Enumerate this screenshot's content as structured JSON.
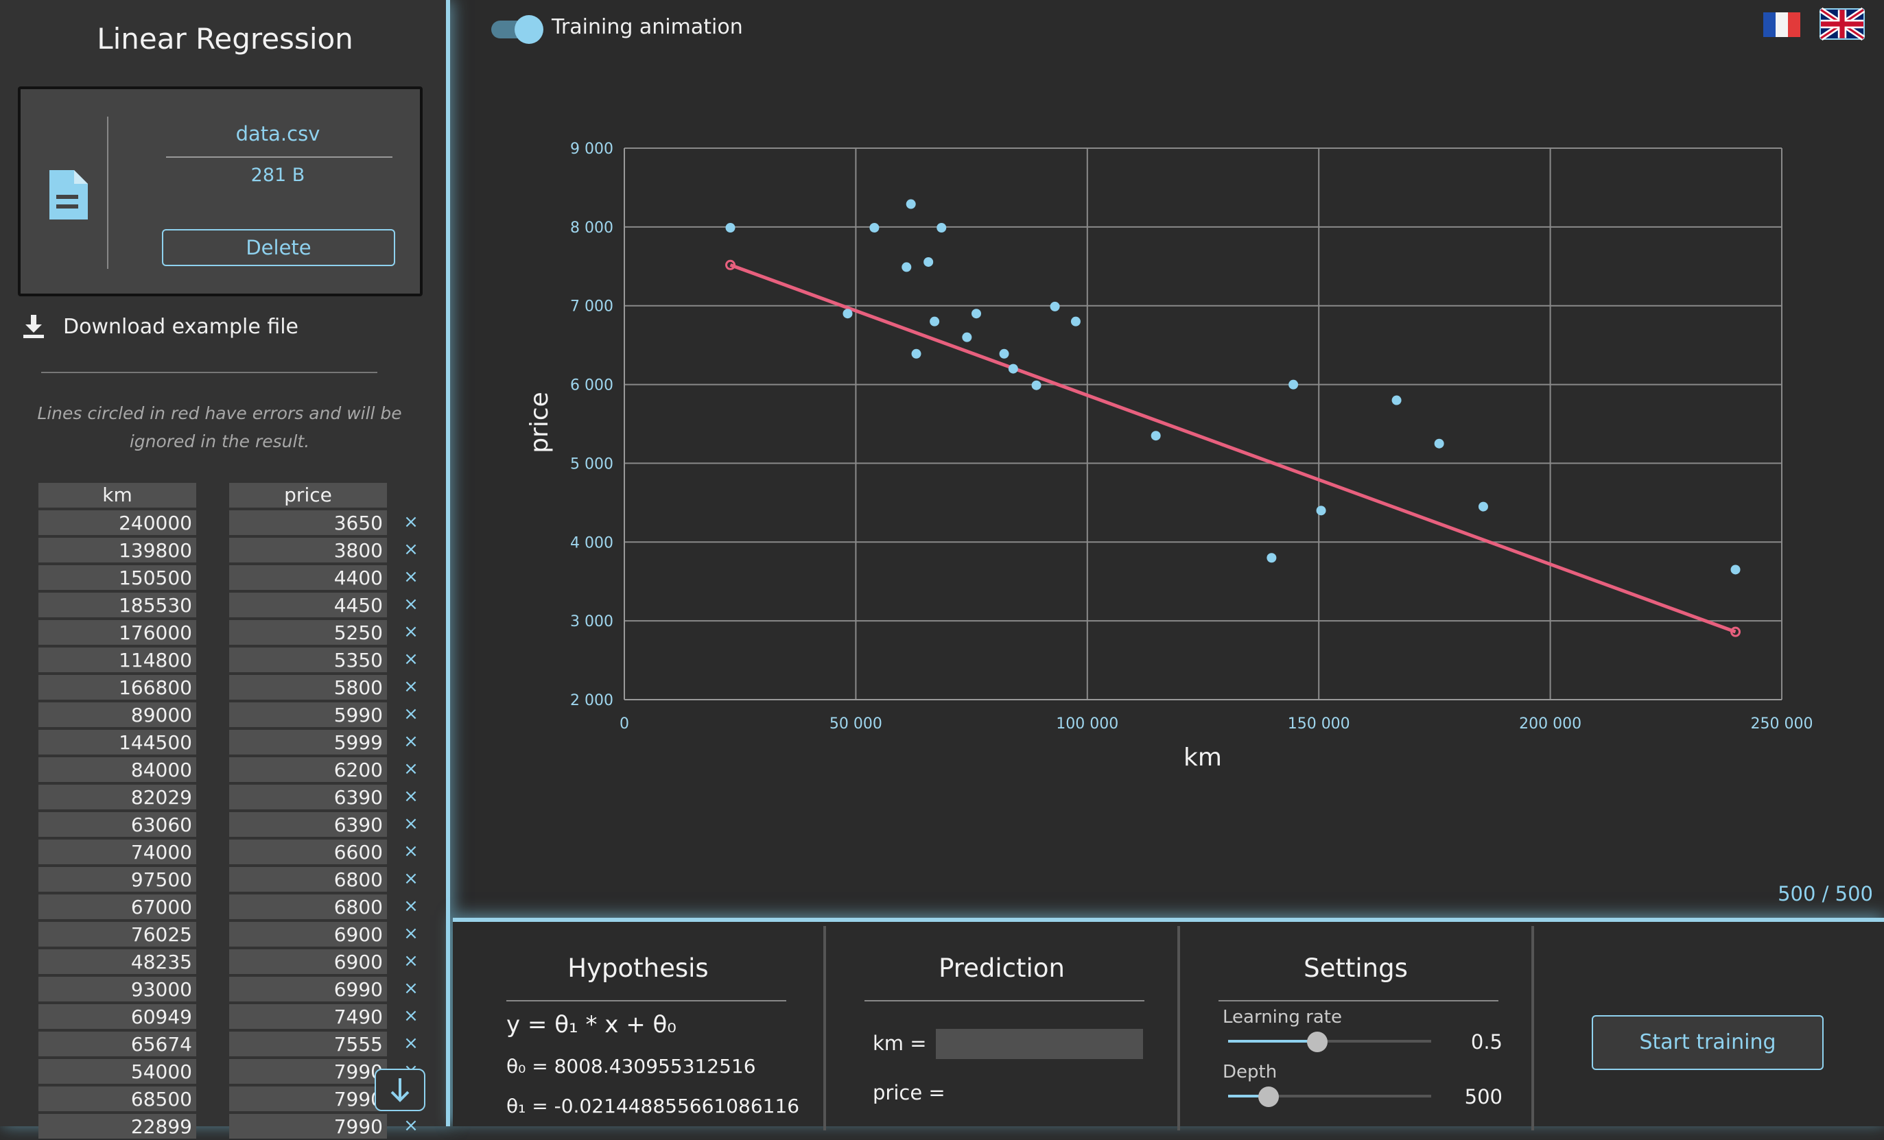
{
  "sidebar": {
    "title": "Linear Regression",
    "file": {
      "name": "data.csv",
      "size": "281 B",
      "delete_label": "Delete"
    },
    "download_label": "Download example file",
    "note": "Lines circled in red have errors and will be ignored in the result.",
    "table": {
      "headers": [
        "km",
        "price"
      ],
      "rows": [
        [
          "240000",
          "3650"
        ],
        [
          "139800",
          "3800"
        ],
        [
          "150500",
          "4400"
        ],
        [
          "185530",
          "4450"
        ],
        [
          "176000",
          "5250"
        ],
        [
          "114800",
          "5350"
        ],
        [
          "166800",
          "5800"
        ],
        [
          "89000",
          "5990"
        ],
        [
          "144500",
          "5999"
        ],
        [
          "84000",
          "6200"
        ],
        [
          "82029",
          "6390"
        ],
        [
          "63060",
          "6390"
        ],
        [
          "74000",
          "6600"
        ],
        [
          "97500",
          "6800"
        ],
        [
          "67000",
          "6800"
        ],
        [
          "76025",
          "6900"
        ],
        [
          "48235",
          "6900"
        ],
        [
          "93000",
          "6990"
        ],
        [
          "60949",
          "7490"
        ],
        [
          "65674",
          "7555"
        ],
        [
          "54000",
          "7990"
        ],
        [
          "68500",
          "7990"
        ],
        [
          "22899",
          "7990"
        ]
      ],
      "remove_symbol": "×"
    }
  },
  "top": {
    "animation_label": "Training animation",
    "animation_on": true,
    "progress": "500 / 500"
  },
  "colors": {
    "accent": "#8fd2ef",
    "regression_line": "#e8607e",
    "background": "#2b2b2b"
  },
  "chart_data": {
    "type": "scatter",
    "xlabel": "km",
    "ylabel": "price",
    "xlim": [
      0,
      250000
    ],
    "ylim": [
      2000,
      9000
    ],
    "x_ticks": [
      0,
      50000,
      100000,
      150000,
      200000,
      250000
    ],
    "x_tick_labels": [
      "0",
      "50 000",
      "100 000",
      "150 000",
      "200 000",
      "250 000"
    ],
    "y_ticks": [
      2000,
      3000,
      4000,
      5000,
      6000,
      7000,
      8000,
      9000
    ],
    "y_tick_labels": [
      "2 000",
      "3 000",
      "4 000",
      "5 000",
      "6 000",
      "7 000",
      "8 000",
      "9 000"
    ],
    "grid": true,
    "points": [
      [
        240000,
        3650
      ],
      [
        139800,
        3800
      ],
      [
        150500,
        4400
      ],
      [
        185530,
        4450
      ],
      [
        176000,
        5250
      ],
      [
        114800,
        5350
      ],
      [
        166800,
        5800
      ],
      [
        89000,
        5990
      ],
      [
        144500,
        5999
      ],
      [
        84000,
        6200
      ],
      [
        82029,
        6390
      ],
      [
        63060,
        6390
      ],
      [
        74000,
        6600
      ],
      [
        97500,
        6800
      ],
      [
        67000,
        6800
      ],
      [
        76025,
        6900
      ],
      [
        48235,
        6900
      ],
      [
        93000,
        6990
      ],
      [
        60949,
        7490
      ],
      [
        65674,
        7555
      ],
      [
        54000,
        7990
      ],
      [
        68500,
        7990
      ],
      [
        22899,
        7990
      ],
      [
        61900,
        8290
      ]
    ],
    "regression_line": {
      "x": [
        22899,
        240000
      ],
      "theta0": 8008.430955312516,
      "theta1": -0.021448855661086116
    }
  },
  "hypothesis": {
    "title": "Hypothesis",
    "equation": "y = θ₁ * x + θ₀",
    "theta0_text": "θ₀ = 8008.430955312516",
    "theta1_text": "θ₁ = -0.021448855661086116"
  },
  "prediction": {
    "title": "Prediction",
    "km_label": "km =",
    "km_value": "",
    "price_label": "price ="
  },
  "settings": {
    "title": "Settings",
    "learning_rate_label": "Learning rate",
    "learning_rate_value": "0.5",
    "learning_rate_fraction": 0.44,
    "depth_label": "Depth",
    "depth_value": "500",
    "depth_fraction": 0.2
  },
  "start_label": "Start training"
}
